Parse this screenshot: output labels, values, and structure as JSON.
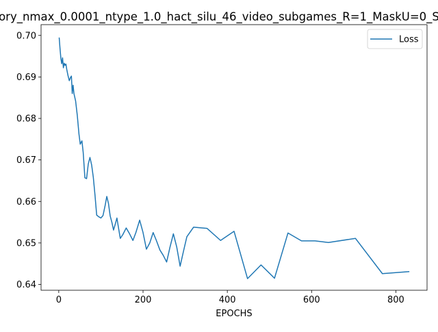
{
  "chart_data": {
    "type": "line",
    "title": "ory_nmax_0.0001_ntype_1.0_hact_silu_46_video_subgames_R=1_MaskU=0_S",
    "xlabel": "EPOCHS",
    "ylabel": "",
    "xlim": [
      -42,
      874
    ],
    "ylim": [
      0.6386,
      0.7026
    ],
    "xticks": [
      0,
      200,
      400,
      600,
      800
    ],
    "yticks": [
      0.64,
      0.65,
      0.66,
      0.67,
      0.68,
      0.69,
      0.7
    ],
    "ytick_labels": [
      "0.64",
      "0.65",
      "0.66",
      "0.67",
      "0.68",
      "0.69",
      "0.70"
    ],
    "grid": false,
    "legend": {
      "placement": "top-right"
    },
    "series": [
      {
        "name": "Loss",
        "color": "#1f77b4",
        "points": [
          [
            1,
            0.6995
          ],
          [
            3,
            0.6968
          ],
          [
            5,
            0.6945
          ],
          [
            7,
            0.6932
          ],
          [
            9,
            0.6946
          ],
          [
            11,
            0.6922
          ],
          [
            13,
            0.6933
          ],
          [
            15,
            0.6928
          ],
          [
            17,
            0.6931
          ],
          [
            19,
            0.6918
          ],
          [
            22,
            0.6903
          ],
          [
            25,
            0.6891
          ],
          [
            28,
            0.6899
          ],
          [
            30,
            0.6902
          ],
          [
            32,
            0.686
          ],
          [
            34,
            0.688
          ],
          [
            36,
            0.686
          ],
          [
            40,
            0.6842
          ],
          [
            44,
            0.6807
          ],
          [
            48,
            0.6762
          ],
          [
            51,
            0.6738
          ],
          [
            55,
            0.6746
          ],
          [
            58,
            0.6718
          ],
          [
            62,
            0.6657
          ],
          [
            66,
            0.6655
          ],
          [
            70,
            0.669
          ],
          [
            74,
            0.6706
          ],
          [
            78,
            0.6688
          ],
          [
            82,
            0.6658
          ],
          [
            86,
            0.6615
          ],
          [
            90,
            0.6567
          ],
          [
            95,
            0.6563
          ],
          [
            100,
            0.656
          ],
          [
            105,
            0.6566
          ],
          [
            110,
            0.659
          ],
          [
            114,
            0.6612
          ],
          [
            118,
            0.6595
          ],
          [
            122,
            0.6565
          ],
          [
            126,
            0.655
          ],
          [
            130,
            0.6531
          ],
          [
            134,
            0.6545
          ],
          [
            138,
            0.656
          ],
          [
            142,
            0.6535
          ],
          [
            146,
            0.6511
          ],
          [
            152,
            0.652
          ],
          [
            160,
            0.6536
          ],
          [
            168,
            0.6522
          ],
          [
            176,
            0.6506
          ],
          [
            183,
            0.6525
          ],
          [
            192,
            0.6555
          ],
          [
            200,
            0.6525
          ],
          [
            208,
            0.6485
          ],
          [
            216,
            0.65
          ],
          [
            224,
            0.6525
          ],
          [
            232,
            0.6505
          ],
          [
            240,
            0.6483
          ],
          [
            248,
            0.647
          ],
          [
            256,
            0.6454
          ],
          [
            264,
            0.649
          ],
          [
            272,
            0.6522
          ],
          [
            280,
            0.649
          ],
          [
            288,
            0.6444
          ],
          [
            296,
            0.648
          ],
          [
            304,
            0.6515
          ],
          [
            320,
            0.6538
          ],
          [
            352,
            0.6535
          ],
          [
            384,
            0.6506
          ],
          [
            416,
            0.6528
          ],
          [
            448,
            0.6414
          ],
          [
            480,
            0.6447
          ],
          [
            512,
            0.6415
          ],
          [
            544,
            0.6524
          ],
          [
            576,
            0.6505
          ],
          [
            608,
            0.6505
          ],
          [
            640,
            0.6501
          ],
          [
            704,
            0.6511
          ],
          [
            768,
            0.6426
          ],
          [
            832,
            0.6431
          ]
        ]
      }
    ]
  }
}
